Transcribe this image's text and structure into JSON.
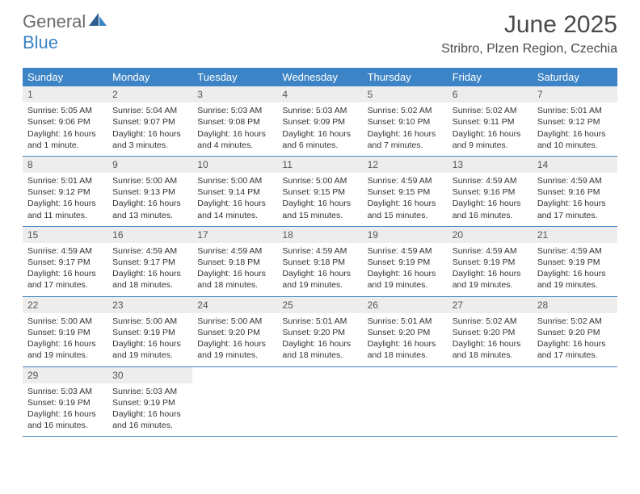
{
  "logo": {
    "text1": "General",
    "text2": "Blue"
  },
  "title": "June 2025",
  "location": "Stribro, Plzen Region, Czechia",
  "colors": {
    "header_bg": "#3d84c6",
    "header_text": "#ffffff",
    "daynum_bg": "#ededed",
    "week_border": "#3d84c6",
    "body_text": "#333333",
    "logo_gray": "#6a6a6a",
    "logo_blue": "#3d84c6"
  },
  "day_names": [
    "Sunday",
    "Monday",
    "Tuesday",
    "Wednesday",
    "Thursday",
    "Friday",
    "Saturday"
  ],
  "weeks": [
    [
      {
        "day": "1",
        "sunrise": "Sunrise: 5:05 AM",
        "sunset": "Sunset: 9:06 PM",
        "daylight": "Daylight: 16 hours and 1 minute."
      },
      {
        "day": "2",
        "sunrise": "Sunrise: 5:04 AM",
        "sunset": "Sunset: 9:07 PM",
        "daylight": "Daylight: 16 hours and 3 minutes."
      },
      {
        "day": "3",
        "sunrise": "Sunrise: 5:03 AM",
        "sunset": "Sunset: 9:08 PM",
        "daylight": "Daylight: 16 hours and 4 minutes."
      },
      {
        "day": "4",
        "sunrise": "Sunrise: 5:03 AM",
        "sunset": "Sunset: 9:09 PM",
        "daylight": "Daylight: 16 hours and 6 minutes."
      },
      {
        "day": "5",
        "sunrise": "Sunrise: 5:02 AM",
        "sunset": "Sunset: 9:10 PM",
        "daylight": "Daylight: 16 hours and 7 minutes."
      },
      {
        "day": "6",
        "sunrise": "Sunrise: 5:02 AM",
        "sunset": "Sunset: 9:11 PM",
        "daylight": "Daylight: 16 hours and 9 minutes."
      },
      {
        "day": "7",
        "sunrise": "Sunrise: 5:01 AM",
        "sunset": "Sunset: 9:12 PM",
        "daylight": "Daylight: 16 hours and 10 minutes."
      }
    ],
    [
      {
        "day": "8",
        "sunrise": "Sunrise: 5:01 AM",
        "sunset": "Sunset: 9:12 PM",
        "daylight": "Daylight: 16 hours and 11 minutes."
      },
      {
        "day": "9",
        "sunrise": "Sunrise: 5:00 AM",
        "sunset": "Sunset: 9:13 PM",
        "daylight": "Daylight: 16 hours and 13 minutes."
      },
      {
        "day": "10",
        "sunrise": "Sunrise: 5:00 AM",
        "sunset": "Sunset: 9:14 PM",
        "daylight": "Daylight: 16 hours and 14 minutes."
      },
      {
        "day": "11",
        "sunrise": "Sunrise: 5:00 AM",
        "sunset": "Sunset: 9:15 PM",
        "daylight": "Daylight: 16 hours and 15 minutes."
      },
      {
        "day": "12",
        "sunrise": "Sunrise: 4:59 AM",
        "sunset": "Sunset: 9:15 PM",
        "daylight": "Daylight: 16 hours and 15 minutes."
      },
      {
        "day": "13",
        "sunrise": "Sunrise: 4:59 AM",
        "sunset": "Sunset: 9:16 PM",
        "daylight": "Daylight: 16 hours and 16 minutes."
      },
      {
        "day": "14",
        "sunrise": "Sunrise: 4:59 AM",
        "sunset": "Sunset: 9:16 PM",
        "daylight": "Daylight: 16 hours and 17 minutes."
      }
    ],
    [
      {
        "day": "15",
        "sunrise": "Sunrise: 4:59 AM",
        "sunset": "Sunset: 9:17 PM",
        "daylight": "Daylight: 16 hours and 17 minutes."
      },
      {
        "day": "16",
        "sunrise": "Sunrise: 4:59 AM",
        "sunset": "Sunset: 9:17 PM",
        "daylight": "Daylight: 16 hours and 18 minutes."
      },
      {
        "day": "17",
        "sunrise": "Sunrise: 4:59 AM",
        "sunset": "Sunset: 9:18 PM",
        "daylight": "Daylight: 16 hours and 18 minutes."
      },
      {
        "day": "18",
        "sunrise": "Sunrise: 4:59 AM",
        "sunset": "Sunset: 9:18 PM",
        "daylight": "Daylight: 16 hours and 19 minutes."
      },
      {
        "day": "19",
        "sunrise": "Sunrise: 4:59 AM",
        "sunset": "Sunset: 9:19 PM",
        "daylight": "Daylight: 16 hours and 19 minutes."
      },
      {
        "day": "20",
        "sunrise": "Sunrise: 4:59 AM",
        "sunset": "Sunset: 9:19 PM",
        "daylight": "Daylight: 16 hours and 19 minutes."
      },
      {
        "day": "21",
        "sunrise": "Sunrise: 4:59 AM",
        "sunset": "Sunset: 9:19 PM",
        "daylight": "Daylight: 16 hours and 19 minutes."
      }
    ],
    [
      {
        "day": "22",
        "sunrise": "Sunrise: 5:00 AM",
        "sunset": "Sunset: 9:19 PM",
        "daylight": "Daylight: 16 hours and 19 minutes."
      },
      {
        "day": "23",
        "sunrise": "Sunrise: 5:00 AM",
        "sunset": "Sunset: 9:19 PM",
        "daylight": "Daylight: 16 hours and 19 minutes."
      },
      {
        "day": "24",
        "sunrise": "Sunrise: 5:00 AM",
        "sunset": "Sunset: 9:20 PM",
        "daylight": "Daylight: 16 hours and 19 minutes."
      },
      {
        "day": "25",
        "sunrise": "Sunrise: 5:01 AM",
        "sunset": "Sunset: 9:20 PM",
        "daylight": "Daylight: 16 hours and 18 minutes."
      },
      {
        "day": "26",
        "sunrise": "Sunrise: 5:01 AM",
        "sunset": "Sunset: 9:20 PM",
        "daylight": "Daylight: 16 hours and 18 minutes."
      },
      {
        "day": "27",
        "sunrise": "Sunrise: 5:02 AM",
        "sunset": "Sunset: 9:20 PM",
        "daylight": "Daylight: 16 hours and 18 minutes."
      },
      {
        "day": "28",
        "sunrise": "Sunrise: 5:02 AM",
        "sunset": "Sunset: 9:20 PM",
        "daylight": "Daylight: 16 hours and 17 minutes."
      }
    ],
    [
      {
        "day": "29",
        "sunrise": "Sunrise: 5:03 AM",
        "sunset": "Sunset: 9:19 PM",
        "daylight": "Daylight: 16 hours and 16 minutes."
      },
      {
        "day": "30",
        "sunrise": "Sunrise: 5:03 AM",
        "sunset": "Sunset: 9:19 PM",
        "daylight": "Daylight: 16 hours and 16 minutes."
      },
      {
        "empty": true
      },
      {
        "empty": true
      },
      {
        "empty": true
      },
      {
        "empty": true
      },
      {
        "empty": true
      }
    ]
  ]
}
